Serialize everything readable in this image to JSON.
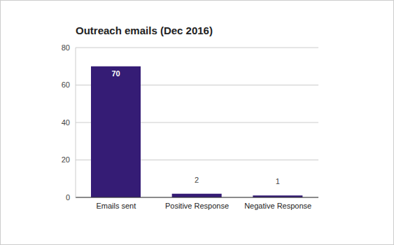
{
  "chart_data": {
    "type": "bar",
    "title": "Outreach emails (Dec 2016)",
    "categories": [
      "Emails sent",
      "Positive Response",
      "Negative Response"
    ],
    "values": [
      70,
      2,
      1
    ],
    "color": "#351c75",
    "ylim": [
      0,
      80
    ],
    "yticks": [
      0,
      20,
      40,
      60,
      80
    ],
    "grid": true,
    "data_labels": true
  }
}
